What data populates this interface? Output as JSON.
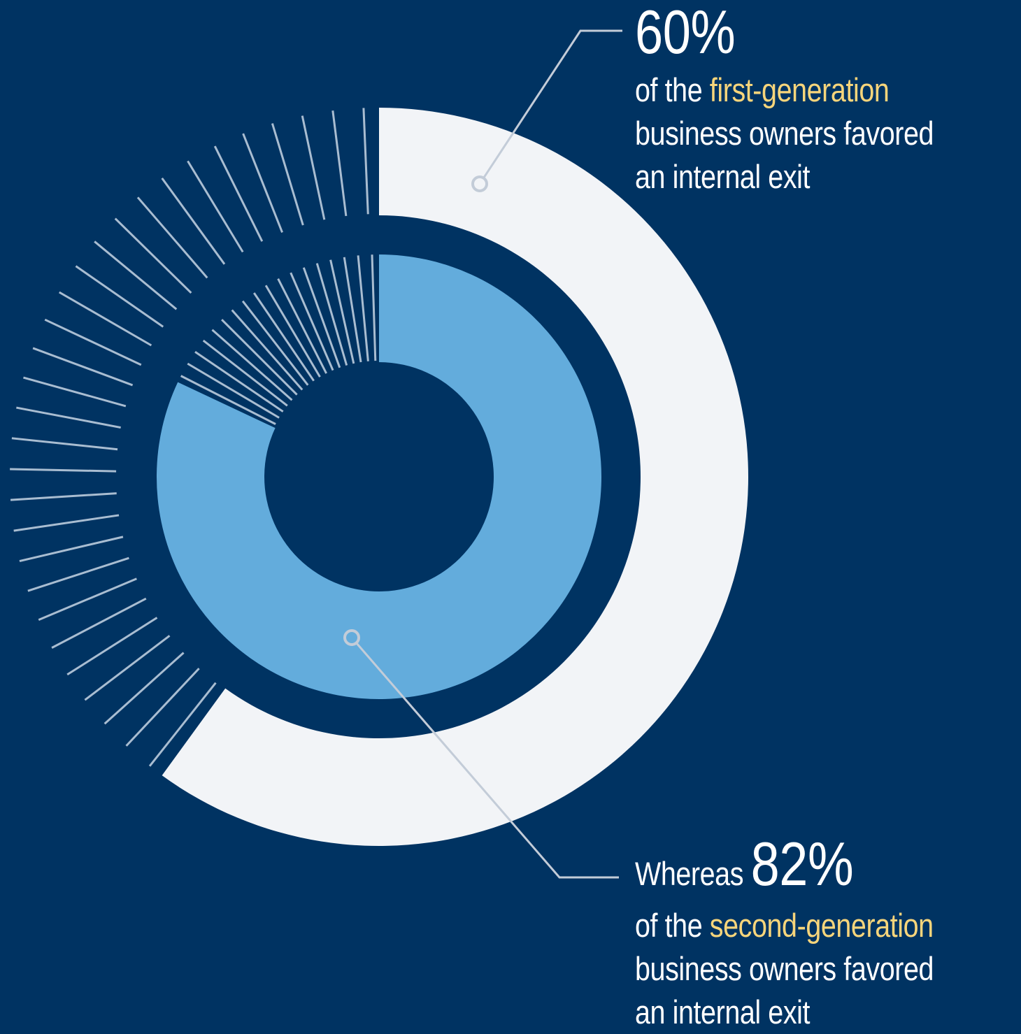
{
  "colors": {
    "background": "#003362",
    "outer_ring": "#f2f4f7",
    "inner_ring": "#63acdc",
    "ticks": "#a9bdd1",
    "leader": "#c3ccd8",
    "highlight": "#f7d57b"
  },
  "chart_data": {
    "type": "pie",
    "rings": [
      {
        "name": "first-generation",
        "value": 60,
        "unit": "%"
      },
      {
        "name": "second-generation",
        "value": 82,
        "unit": "%"
      }
    ]
  },
  "callout_top": {
    "value": "60%",
    "prefix": "of the ",
    "highlight": "first-generation",
    "line2": "business owners favored",
    "line3": "an internal exit"
  },
  "callout_bottom": {
    "lead": "Whereas ",
    "value": "82%",
    "prefix": "of the ",
    "highlight": "second-generation",
    "line2": "business owners favored",
    "line3": "an internal exit"
  }
}
